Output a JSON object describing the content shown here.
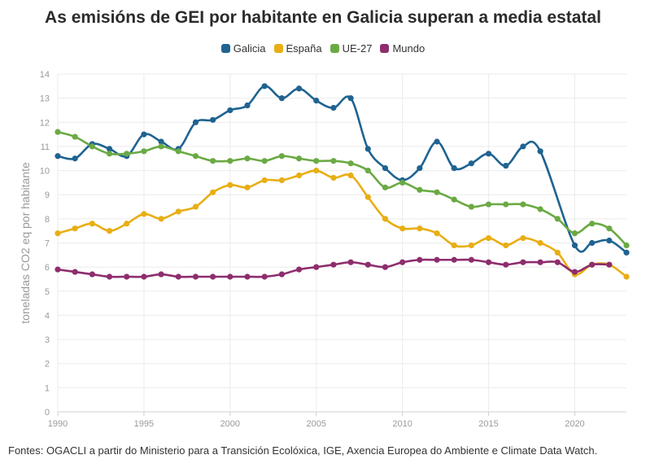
{
  "title": "As emisións de GEI por habitante en Galicia superan a media estatal",
  "source": "Fontes: OGACLI a partir do Ministerio para a Transición Ecolóxica, IGE, Axencia Europea do Ambiente e Climate Data Watch.",
  "chart_data": {
    "type": "line",
    "title": "As emisións de GEI por habitante en Galicia superan a media estatal",
    "ylabel": "toneladas CO2 eq por habitante",
    "xlabel": "",
    "xlim": [
      1990,
      2023
    ],
    "ylim": [
      0,
      14
    ],
    "x_ticks": [
      1990,
      1995,
      2000,
      2005,
      2010,
      2015,
      2020
    ],
    "y_ticks": [
      0,
      1,
      2,
      3,
      4,
      5,
      6,
      7,
      8,
      9,
      10,
      11,
      12,
      13,
      14
    ],
    "grid": true,
    "legend_position": "top",
    "x": [
      1990,
      1991,
      1992,
      1993,
      1994,
      1995,
      1996,
      1997,
      1998,
      1999,
      2000,
      2001,
      2002,
      2003,
      2004,
      2005,
      2006,
      2007,
      2008,
      2009,
      2010,
      2011,
      2012,
      2013,
      2014,
      2015,
      2016,
      2017,
      2018,
      2019,
      2020,
      2021,
      2022,
      2023
    ],
    "series": [
      {
        "name": "Galicia",
        "color": "#1f6391",
        "values": [
          10.6,
          10.5,
          11.1,
          10.9,
          10.6,
          11.5,
          11.2,
          10.9,
          12.0,
          12.1,
          12.5,
          12.7,
          13.5,
          13.0,
          13.4,
          12.9,
          12.6,
          13.0,
          10.9,
          10.1,
          9.6,
          10.1,
          11.2,
          10.1,
          10.3,
          10.7,
          10.2,
          11.0,
          10.8,
          null,
          6.9,
          7.0,
          7.1,
          6.6
        ]
      },
      {
        "name": "España",
        "color": "#e8ae14",
        "values": [
          7.4,
          7.6,
          7.8,
          7.5,
          7.8,
          8.2,
          8.0,
          8.3,
          8.5,
          9.1,
          9.4,
          9.3,
          9.6,
          9.6,
          9.8,
          10.0,
          9.7,
          9.8,
          8.9,
          8.0,
          7.6,
          7.6,
          7.4,
          6.9,
          6.9,
          7.2,
          6.9,
          7.2,
          7.0,
          6.6,
          5.7,
          6.1,
          6.1,
          5.6
        ]
      },
      {
        "name": "UE-27",
        "color": "#6aaa44",
        "values": [
          11.6,
          11.4,
          11.0,
          10.7,
          10.7,
          10.8,
          11.0,
          10.8,
          10.6,
          10.4,
          10.4,
          10.5,
          10.4,
          10.6,
          10.5,
          10.4,
          10.4,
          10.3,
          10.0,
          9.3,
          9.5,
          9.2,
          9.1,
          8.8,
          8.5,
          8.6,
          8.6,
          8.6,
          8.4,
          8.0,
          7.4,
          7.8,
          7.6,
          6.9
        ]
      },
      {
        "name": "Mundo",
        "color": "#8e2d6d",
        "values": [
          5.9,
          5.8,
          5.7,
          5.6,
          5.6,
          5.6,
          5.7,
          5.6,
          5.6,
          5.6,
          5.6,
          5.6,
          5.6,
          5.7,
          5.9,
          6.0,
          6.1,
          6.2,
          6.1,
          6.0,
          6.2,
          6.3,
          6.3,
          6.3,
          6.3,
          6.2,
          6.1,
          6.2,
          6.2,
          6.2,
          5.8,
          6.1,
          6.1,
          null
        ]
      }
    ]
  }
}
